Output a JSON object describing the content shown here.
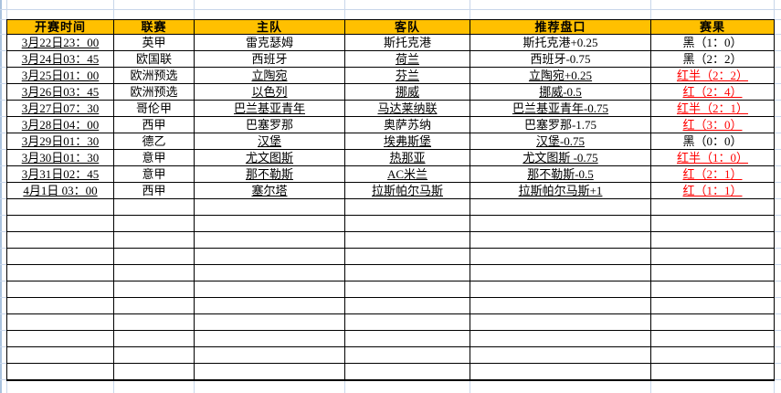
{
  "sheet": {
    "headers": [
      "开赛时间",
      "联赛",
      "主队",
      "客队",
      "推荐盘口",
      "赛果"
    ],
    "column_keys": [
      "match-time",
      "league",
      "home-team",
      "away-team",
      "handicap",
      "result"
    ],
    "rows": [
      {
        "cells": [
          {
            "t": "3月22日23：00",
            "u": true
          },
          {
            "t": "英甲"
          },
          {
            "t": "雷克瑟姆"
          },
          {
            "t": "斯托克港"
          },
          {
            "t": "斯托克港+0.25"
          },
          {
            "t": "黑（1：0）"
          }
        ]
      },
      {
        "cells": [
          {
            "t": "3月24日03：45",
            "u": true
          },
          {
            "t": "欧国联"
          },
          {
            "t": "西班牙"
          },
          {
            "t": "荷兰",
            "u": true
          },
          {
            "t": "西班牙-0.75"
          },
          {
            "t": "黑（2：2）"
          }
        ]
      },
      {
        "cells": [
          {
            "t": "3月25日01：00",
            "u": true
          },
          {
            "t": "欧洲预选"
          },
          {
            "t": "立陶宛",
            "u": true
          },
          {
            "t": "芬兰",
            "u": true
          },
          {
            "t": "立陶宛+0.25",
            "u": true
          },
          {
            "t": "红半（2：2）",
            "u": true,
            "red": true
          }
        ]
      },
      {
        "cells": [
          {
            "t": "3月26日03：45",
            "u": true
          },
          {
            "t": "欧洲预选"
          },
          {
            "t": "以色列",
            "u": true
          },
          {
            "t": "挪威",
            "u": true
          },
          {
            "t": "挪威-0.5",
            "u": true
          },
          {
            "t": "红（2：4）",
            "u": true,
            "red": true
          }
        ]
      },
      {
        "cells": [
          {
            "t": "3月27日07：30",
            "u": true
          },
          {
            "t": "哥伦甲"
          },
          {
            "t": "巴兰基亚青年",
            "u": true
          },
          {
            "t": "马达莱纳联",
            "u": true
          },
          {
            "t": "巴兰基亚青年-0.75",
            "u": true
          },
          {
            "t": "红半（2：1）",
            "u": true,
            "red": true
          }
        ]
      },
      {
        "cells": [
          {
            "t": "3月28日04：00",
            "u": true
          },
          {
            "t": "西甲"
          },
          {
            "t": "巴塞罗那"
          },
          {
            "t": "奥萨苏纳"
          },
          {
            "t": "巴塞罗那-1.75"
          },
          {
            "t": "红（3：0）",
            "u": true,
            "red": true
          }
        ]
      },
      {
        "cells": [
          {
            "t": "3月29日01：30",
            "u": true
          },
          {
            "t": "德乙"
          },
          {
            "t": "汉堡",
            "u": true
          },
          {
            "t": "埃弗斯堡",
            "u": true
          },
          {
            "t": "汉堡-0.75",
            "u": true
          },
          {
            "t": "黑（0：0）"
          }
        ]
      },
      {
        "cells": [
          {
            "t": "3月30日01：30",
            "u": true
          },
          {
            "t": "意甲"
          },
          {
            "t": "尤文图斯",
            "u": true
          },
          {
            "t": "热那亚",
            "u": true
          },
          {
            "t": "尤文图斯 -0.75",
            "u": true
          },
          {
            "t": "红半（1：0）",
            "u": true,
            "red": true
          }
        ]
      },
      {
        "cells": [
          {
            "t": "3月31日02：45",
            "u": true
          },
          {
            "t": "意甲"
          },
          {
            "t": "那不勒斯",
            "u": true
          },
          {
            "t": "AC米兰",
            "u": true
          },
          {
            "t": "那不勒斯-0.5",
            "u": true
          },
          {
            "t": "红（2：1）",
            "u": true,
            "red": true
          }
        ]
      },
      {
        "cells": [
          {
            "t": "4月1日 03：00",
            "u": true
          },
          {
            "t": "西甲"
          },
          {
            "t": "塞尔塔",
            "u": true
          },
          {
            "t": "拉斯帕尔马斯",
            "u": true
          },
          {
            "t": "拉斯帕尔马斯+1",
            "u": true
          },
          {
            "t": "红（1：1）",
            "u": true,
            "red": true
          }
        ]
      }
    ],
    "empty_row_count": 11,
    "colors": {
      "header_bg": "#FFC000",
      "result_win_red": "#FF0000",
      "text_black": "#000000",
      "cell_border": "#000000",
      "gridline": "#C8D6EA"
    }
  }
}
